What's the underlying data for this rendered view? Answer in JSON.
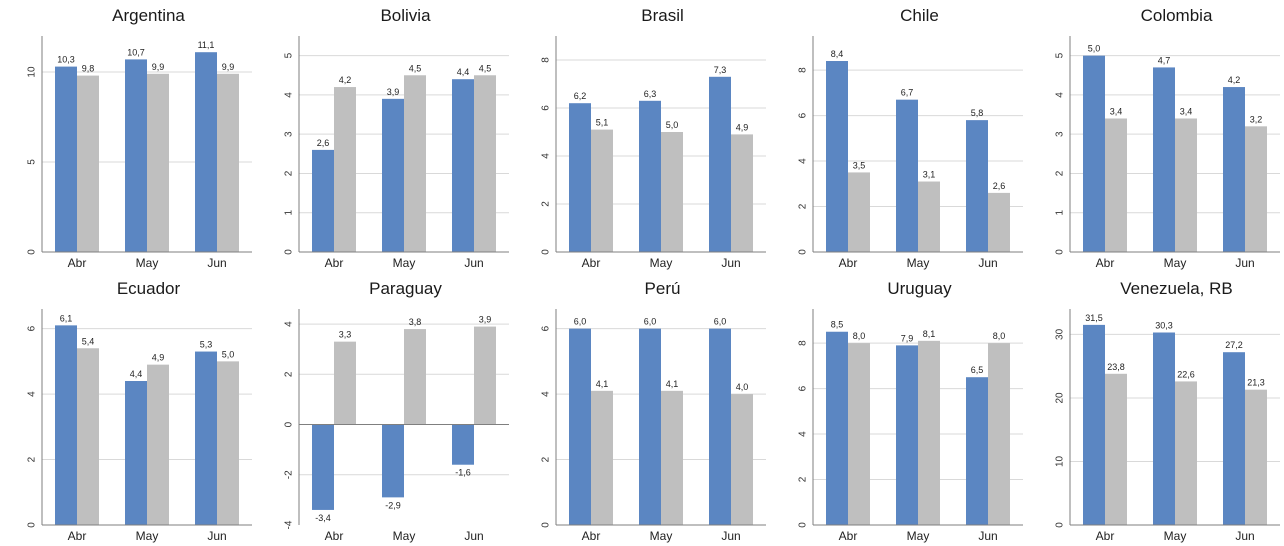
{
  "colors": {
    "series_1": "#5b86c2",
    "series_2": "#bfbfbf",
    "gridline": "#d9d9d9",
    "axis": "#7f7f7f"
  },
  "chart_data": [
    {
      "type": "bar",
      "title": "Argentina",
      "categories": [
        "Abr",
        "May",
        "Jun"
      ],
      "series": [
        {
          "values": [
            10.3,
            10.7,
            11.1
          ],
          "labels": [
            "10,3",
            "10,7",
            "11,1"
          ]
        },
        {
          "values": [
            9.8,
            9.9,
            9.9
          ],
          "labels": [
            "9,8",
            "9,9",
            "9,9"
          ]
        }
      ],
      "ylim": [
        0,
        12
      ],
      "yticks": [
        0,
        5,
        10
      ],
      "ytick_labels": [
        "0",
        "5",
        "10"
      ],
      "grid": true,
      "legend": "none"
    },
    {
      "type": "bar",
      "title": "Bolivia",
      "categories": [
        "Abr",
        "May",
        "Jun"
      ],
      "series": [
        {
          "values": [
            2.6,
            3.9,
            4.4
          ],
          "labels": [
            "2,6",
            "3,9",
            "4,4"
          ]
        },
        {
          "values": [
            4.2,
            4.5,
            4.5
          ],
          "labels": [
            "4,2",
            "4,5",
            "4,5"
          ]
        }
      ],
      "ylim": [
        0,
        5.5
      ],
      "yticks": [
        0,
        1,
        2,
        3,
        4,
        5
      ],
      "ytick_labels": [
        "0",
        "1",
        "2",
        "3",
        "4",
        "5"
      ],
      "grid": true,
      "legend": "none"
    },
    {
      "type": "bar",
      "title": "Brasil",
      "categories": [
        "Abr",
        "May",
        "Jun"
      ],
      "series": [
        {
          "values": [
            6.2,
            6.3,
            7.3
          ],
          "labels": [
            "6,2",
            "6,3",
            "7,3"
          ]
        },
        {
          "values": [
            5.1,
            5.0,
            4.9
          ],
          "labels": [
            "5,1",
            "5,0",
            "4,9"
          ]
        }
      ],
      "ylim": [
        0,
        9
      ],
      "yticks": [
        0,
        2,
        4,
        6,
        8
      ],
      "ytick_labels": [
        "0",
        "2",
        "4",
        "6",
        "8"
      ],
      "grid": true,
      "legend": "none"
    },
    {
      "type": "bar",
      "title": "Chile",
      "categories": [
        "Abr",
        "May",
        "Jun"
      ],
      "series": [
        {
          "values": [
            8.4,
            6.7,
            5.8
          ],
          "labels": [
            "8,4",
            "6,7",
            "5,8"
          ]
        },
        {
          "values": [
            3.5,
            3.1,
            2.6
          ],
          "labels": [
            "3,5",
            "3,1",
            "2,6"
          ]
        }
      ],
      "ylim": [
        0,
        9.5
      ],
      "yticks": [
        0,
        2,
        4,
        6,
        8
      ],
      "ytick_labels": [
        "0",
        "2",
        "4",
        "6",
        "8"
      ],
      "grid": true,
      "legend": "none"
    },
    {
      "type": "bar",
      "title": "Colombia",
      "categories": [
        "Abr",
        "May",
        "Jun"
      ],
      "series": [
        {
          "values": [
            5.0,
            4.7,
            4.2
          ],
          "labels": [
            "5,0",
            "4,7",
            "4,2"
          ]
        },
        {
          "values": [
            3.4,
            3.4,
            3.2
          ],
          "labels": [
            "3,4",
            "3,4",
            "3,2"
          ]
        }
      ],
      "ylim": [
        0,
        5.5
      ],
      "yticks": [
        0,
        1,
        2,
        3,
        4,
        5
      ],
      "ytick_labels": [
        "0",
        "1",
        "2",
        "3",
        "4",
        "5"
      ],
      "grid": true,
      "legend": "none"
    },
    {
      "type": "bar",
      "title": "Ecuador",
      "categories": [
        "Abr",
        "May",
        "Jun"
      ],
      "series": [
        {
          "values": [
            6.1,
            4.4,
            5.3
          ],
          "labels": [
            "6,1",
            "4,4",
            "5,3"
          ]
        },
        {
          "values": [
            5.4,
            4.9,
            5.0
          ],
          "labels": [
            "5,4",
            "4,9",
            "5,0"
          ]
        }
      ],
      "ylim": [
        0,
        6.6
      ],
      "yticks": [
        0,
        2,
        4,
        6
      ],
      "ytick_labels": [
        "0",
        "2",
        "4",
        "6"
      ],
      "grid": true,
      "legend": "none"
    },
    {
      "type": "bar",
      "title": "Paraguay",
      "categories": [
        "Abr",
        "May",
        "Jun"
      ],
      "series": [
        {
          "values": [
            -3.4,
            -2.9,
            -1.6
          ],
          "labels": [
            "-3,4",
            "-2,9",
            "-1,6"
          ]
        },
        {
          "values": [
            3.3,
            3.8,
            3.9
          ],
          "labels": [
            "3,3",
            "3,8",
            "3,9"
          ]
        }
      ],
      "ylim": [
        -4,
        4.6
      ],
      "yticks": [
        -4,
        -2,
        0,
        2,
        4
      ],
      "ytick_labels": [
        "-4",
        "-2",
        "0",
        "2",
        "4"
      ],
      "grid": true,
      "legend": "none"
    },
    {
      "type": "bar",
      "title": "Perú",
      "categories": [
        "Abr",
        "May",
        "Jun"
      ],
      "series": [
        {
          "values": [
            6.0,
            6.0,
            6.0
          ],
          "labels": [
            "6,0",
            "6,0",
            "6,0"
          ]
        },
        {
          "values": [
            4.1,
            4.1,
            4.0
          ],
          "labels": [
            "4,1",
            "4,1",
            "4,0"
          ]
        }
      ],
      "ylim": [
        0,
        6.6
      ],
      "yticks": [
        0,
        2,
        4,
        6
      ],
      "ytick_labels": [
        "0",
        "2",
        "4",
        "6"
      ],
      "grid": true,
      "legend": "none"
    },
    {
      "type": "bar",
      "title": "Uruguay",
      "categories": [
        "Abr",
        "May",
        "Jun"
      ],
      "series": [
        {
          "values": [
            8.5,
            7.9,
            6.5
          ],
          "labels": [
            "8,5",
            "7,9",
            "6,5"
          ]
        },
        {
          "values": [
            8.0,
            8.1,
            8.0
          ],
          "labels": [
            "8,0",
            "8,1",
            "8,0"
          ]
        }
      ],
      "ylim": [
        0,
        9.5
      ],
      "yticks": [
        0,
        2,
        4,
        6,
        8
      ],
      "ytick_labels": [
        "0",
        "2",
        "4",
        "6",
        "8"
      ],
      "grid": true,
      "legend": "none"
    },
    {
      "type": "bar",
      "title": "Venezuela, RB",
      "categories": [
        "Abr",
        "May",
        "Jun"
      ],
      "series": [
        {
          "values": [
            31.5,
            30.3,
            27.2
          ],
          "labels": [
            "31,5",
            "30,3",
            "27,2"
          ]
        },
        {
          "values": [
            23.8,
            22.6,
            21.3
          ],
          "labels": [
            "23,8",
            "22,6",
            "21,3"
          ]
        }
      ],
      "ylim": [
        0,
        34
      ],
      "yticks": [
        0,
        10,
        20,
        30
      ],
      "ytick_labels": [
        "0",
        "10",
        "20",
        "30"
      ],
      "grid": true,
      "legend": "none"
    }
  ]
}
